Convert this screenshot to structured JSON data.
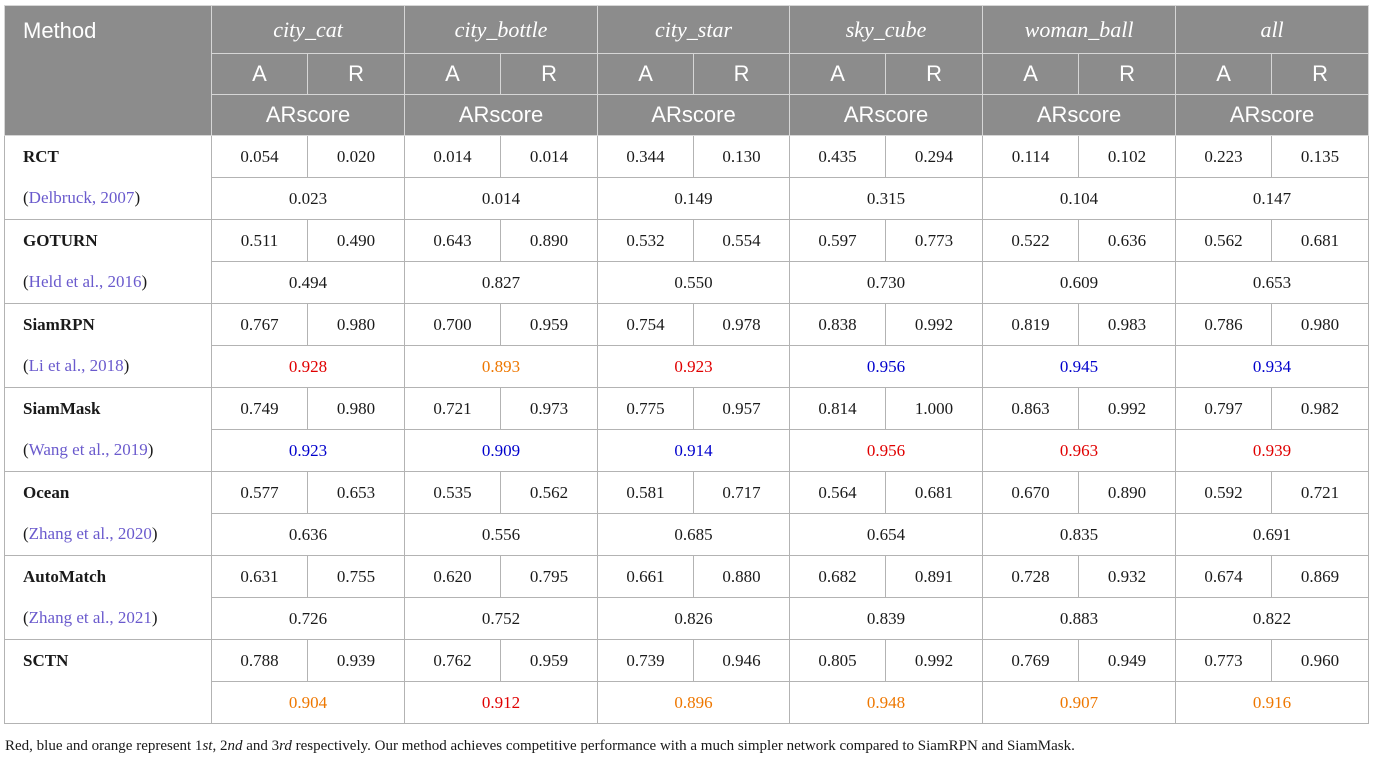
{
  "header": {
    "method_label": "Method",
    "sequences": [
      "city_cat",
      "city_bottle",
      "city_star",
      "sky_cube",
      "woman_ball",
      "all"
    ],
    "a_label": "A",
    "r_label": "R",
    "score_label": "ARscore"
  },
  "rows": [
    {
      "name": "RCT",
      "cite_open": "(",
      "cite": "Delbruck, 2007",
      "cite_close": ")",
      "ar": [
        [
          "0.054",
          "0.020"
        ],
        [
          "0.014",
          "0.014"
        ],
        [
          "0.344",
          "0.130"
        ],
        [
          "0.435",
          "0.294"
        ],
        [
          "0.114",
          "0.102"
        ],
        [
          "0.223",
          "0.135"
        ]
      ],
      "score": [
        [
          "0.023",
          ""
        ],
        [
          "0.014",
          ""
        ],
        [
          "0.149",
          ""
        ],
        [
          "0.315",
          ""
        ],
        [
          "0.104",
          ""
        ],
        [
          "0.147",
          ""
        ]
      ]
    },
    {
      "name": "GOTURN",
      "cite_open": "(",
      "cite": "Held et al., 2016",
      "cite_close": ")",
      "ar": [
        [
          "0.511",
          "0.490"
        ],
        [
          "0.643",
          "0.890"
        ],
        [
          "0.532",
          "0.554"
        ],
        [
          "0.597",
          "0.773"
        ],
        [
          "0.522",
          "0.636"
        ],
        [
          "0.562",
          "0.681"
        ]
      ],
      "score": [
        [
          "0.494",
          ""
        ],
        [
          "0.827",
          ""
        ],
        [
          "0.550",
          ""
        ],
        [
          "0.730",
          ""
        ],
        [
          "0.609",
          ""
        ],
        [
          "0.653",
          ""
        ]
      ]
    },
    {
      "name": "SiamRPN",
      "cite_open": "(",
      "cite": "Li et al., 2018",
      "cite_close": ")",
      "ar": [
        [
          "0.767",
          "0.980"
        ],
        [
          "0.700",
          "0.959"
        ],
        [
          "0.754",
          "0.978"
        ],
        [
          "0.838",
          "0.992"
        ],
        [
          "0.819",
          "0.983"
        ],
        [
          "0.786",
          "0.980"
        ]
      ],
      "score": [
        [
          "0.928",
          "r1"
        ],
        [
          "0.893",
          "r3"
        ],
        [
          "0.923",
          "r1"
        ],
        [
          "0.956",
          "r2"
        ],
        [
          "0.945",
          "r2"
        ],
        [
          "0.934",
          "r2"
        ]
      ]
    },
    {
      "name": "SiamMask",
      "cite_open": "(",
      "cite": "Wang et al., 2019",
      "cite_close": ")",
      "ar": [
        [
          "0.749",
          "0.980"
        ],
        [
          "0.721",
          "0.973"
        ],
        [
          "0.775",
          "0.957"
        ],
        [
          "0.814",
          "1.000"
        ],
        [
          "0.863",
          "0.992"
        ],
        [
          "0.797",
          "0.982"
        ]
      ],
      "score": [
        [
          "0.923",
          "r2"
        ],
        [
          "0.909",
          "r2"
        ],
        [
          "0.914",
          "r2"
        ],
        [
          "0.956",
          "r1"
        ],
        [
          "0.963",
          "r1"
        ],
        [
          "0.939",
          "r1"
        ]
      ]
    },
    {
      "name": "Ocean",
      "cite_open": "(",
      "cite": "Zhang et al., 2020",
      "cite_close": ")",
      "ar": [
        [
          "0.577",
          "0.653"
        ],
        [
          "0.535",
          "0.562"
        ],
        [
          "0.581",
          "0.717"
        ],
        [
          "0.564",
          "0.681"
        ],
        [
          "0.670",
          "0.890"
        ],
        [
          "0.592",
          "0.721"
        ]
      ],
      "score": [
        [
          "0.636",
          ""
        ],
        [
          "0.556",
          ""
        ],
        [
          "0.685",
          ""
        ],
        [
          "0.654",
          ""
        ],
        [
          "0.835",
          ""
        ],
        [
          "0.691",
          ""
        ]
      ]
    },
    {
      "name": "AutoMatch",
      "cite_open": "(",
      "cite": "Zhang et al., 2021",
      "cite_close": ")",
      "ar": [
        [
          "0.631",
          "0.755"
        ],
        [
          "0.620",
          "0.795"
        ],
        [
          "0.661",
          "0.880"
        ],
        [
          "0.682",
          "0.891"
        ],
        [
          "0.728",
          "0.932"
        ],
        [
          "0.674",
          "0.869"
        ]
      ],
      "score": [
        [
          "0.726",
          ""
        ],
        [
          "0.752",
          ""
        ],
        [
          "0.826",
          ""
        ],
        [
          "0.839",
          ""
        ],
        [
          "0.883",
          ""
        ],
        [
          "0.822",
          ""
        ]
      ]
    },
    {
      "name": "SCTN",
      "cite_open": "",
      "cite": "",
      "cite_close": "",
      "ar": [
        [
          "0.788",
          "0.939"
        ],
        [
          "0.762",
          "0.959"
        ],
        [
          "0.739",
          "0.946"
        ],
        [
          "0.805",
          "0.992"
        ],
        [
          "0.769",
          "0.949"
        ],
        [
          "0.773",
          "0.960"
        ]
      ],
      "score": [
        [
          "0.904",
          "r3"
        ],
        [
          "0.912",
          "r1"
        ],
        [
          "0.896",
          "r3"
        ],
        [
          "0.948",
          "r3"
        ],
        [
          "0.907",
          "r3"
        ],
        [
          "0.916",
          "r3"
        ]
      ]
    }
  ],
  "footnote": {
    "p1": "Red, blue and orange represent 1",
    "s1": "st",
    "p2": ", 2",
    "s2": "nd",
    "p3": " and 3",
    "s3": "rd",
    "p4": " respectively. Our method achieves competitive performance with a much simpler network compared to SiamRPN and SiamMask."
  },
  "colors": {
    "header_bg": "#8c8c8c",
    "first": "#e00000",
    "second": "#0000cc",
    "third": "#ee7700",
    "citation": "#6a5acd"
  }
}
